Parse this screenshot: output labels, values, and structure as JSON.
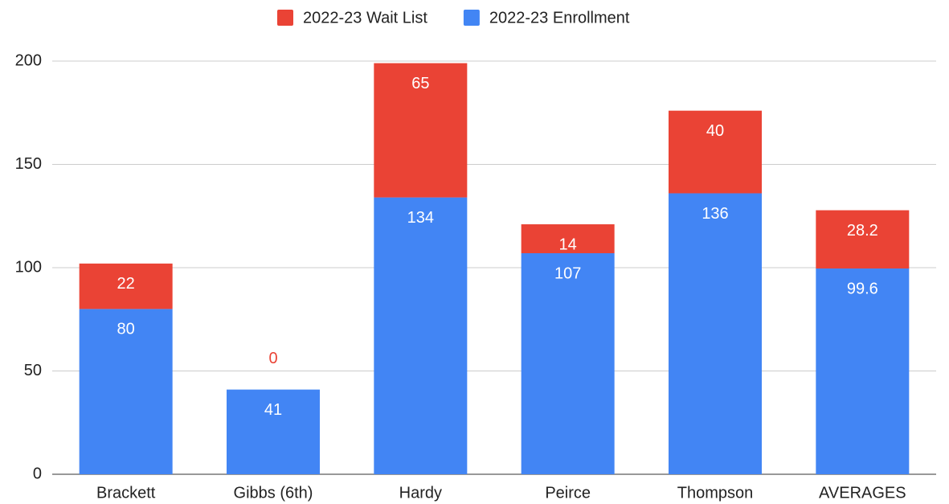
{
  "chart_data": {
    "type": "stacked_bar",
    "categories": [
      "Brackett",
      "Gibbs (6th)",
      "Hardy",
      "Peirce",
      "Thompson",
      "AVERAGES"
    ],
    "series": [
      {
        "name": "2022-23 Wait List",
        "color": "#ea4335",
        "values": [
          22,
          0,
          65,
          14,
          40,
          28.2
        ]
      },
      {
        "name": "2022-23 Enrollment",
        "color": "#4285f4",
        "values": [
          80,
          41,
          134,
          107,
          136,
          99.6
        ]
      }
    ],
    "ylim": [
      0,
      200
    ],
    "yticks": [
      0,
      50,
      100,
      150,
      200
    ],
    "grid": true,
    "legend": "top"
  }
}
